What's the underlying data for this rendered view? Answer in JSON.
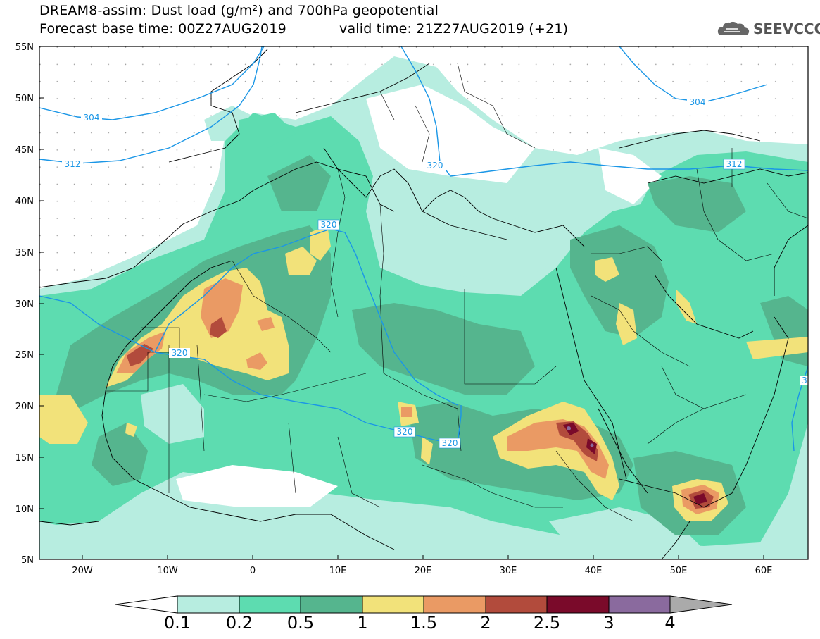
{
  "header": {
    "title_line1": "DREAM8-assim: Dust load (g/m²) and 700hPa geopotential",
    "title_line2_left": "Forecast base time: 00Z27AUG2019",
    "title_line2_right": "valid time: 21Z27AUG2019 (+21)",
    "logo_text": "SEEVCCC"
  },
  "axes": {
    "lat_labels": [
      "55N",
      "50N",
      "45N",
      "40N",
      "35N",
      "30N",
      "25N",
      "20N",
      "15N",
      "10N",
      "5N"
    ],
    "lon_labels": [
      "20W",
      "10W",
      "0",
      "10E",
      "20E",
      "30E",
      "40E",
      "50E",
      "60E"
    ]
  },
  "contours": {
    "labels": [
      "304",
      "312",
      "320",
      "320",
      "320",
      "320",
      "320",
      "312",
      "304",
      "3"
    ]
  },
  "colorbar": {
    "ticks": [
      "0.1",
      "0.2",
      "0.5",
      "1",
      "1.5",
      "2",
      "2.5",
      "3",
      "4"
    ],
    "colors": [
      "#ffffff",
      "#b7ede0",
      "#5ddcb0",
      "#55b58e",
      "#f2e27a",
      "#ea9a64",
      "#b24b3c",
      "#7a0a2a",
      "#8a6a9e",
      "#aaaaaa"
    ]
  },
  "colors": {
    "dust_01": "#b7ede0",
    "dust_02": "#5ddcb0",
    "dust_05": "#55b58e",
    "dust_1": "#f2e27a",
    "dust_15": "#ea9a64",
    "dust_2": "#b24b3c",
    "dust_25": "#7a0a2a",
    "dust_3": "#8a6a9e",
    "contour": "#1a96e6"
  }
}
